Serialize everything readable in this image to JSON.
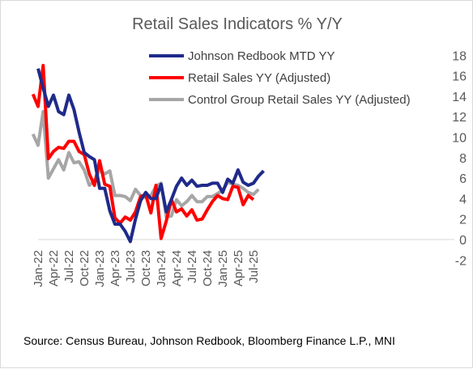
{
  "chart_data": {
    "type": "line",
    "title": "Retail Sales Indicators % Y/Y",
    "source": "Source: Census Bureau, Johnson Redbook, Bloomberg Finance L.P., MNI",
    "x_start": "2022-01",
    "x_tick_labels": [
      "Jan-22",
      "Apr-22",
      "Jul-22",
      "Oct-22",
      "Jan-23",
      "Apr-23",
      "Jul-23",
      "Oct-23",
      "Jan-24",
      "Apr-24",
      "Jul-24",
      "Oct-24",
      "Jan-25",
      "Apr-25",
      "Jul-25"
    ],
    "y_ticks": [
      "18",
      "16",
      "14",
      "12",
      "10",
      "8",
      "6",
      "4",
      "2",
      "0",
      "-2"
    ],
    "ylim": [
      -2,
      18
    ],
    "y_axis_position": "right",
    "grid": false,
    "legend_position": "top-right",
    "series": [
      {
        "name": "Johnson Redbook MTD YY",
        "color": "#1f2a8a",
        "points": [
          [
            "2022-01",
            16.7
          ],
          [
            "2022-02",
            14.8
          ],
          [
            "2022-03",
            13.0
          ],
          [
            "2022-04",
            14.1
          ],
          [
            "2022-05",
            12.5
          ],
          [
            "2022-06",
            12.2
          ],
          [
            "2022-07",
            14.1
          ],
          [
            "2022-08",
            12.7
          ],
          [
            "2022-09",
            10.5
          ],
          [
            "2022-10",
            8.5
          ],
          [
            "2022-11",
            8.1
          ],
          [
            "2022-12",
            7.8
          ],
          [
            "2023-01",
            5.0
          ],
          [
            "2023-02",
            5.0
          ],
          [
            "2023-03",
            2.8
          ],
          [
            "2023-04",
            1.5
          ],
          [
            "2023-05",
            1.5
          ],
          [
            "2023-06",
            0.8
          ],
          [
            "2023-07",
            -0.2
          ],
          [
            "2023-08",
            2.0
          ],
          [
            "2023-09",
            3.8
          ],
          [
            "2023-10",
            4.6
          ],
          [
            "2023-11",
            4.0
          ],
          [
            "2023-12",
            4.0
          ],
          [
            "2024-01",
            5.4
          ],
          [
            "2024-02",
            2.7
          ],
          [
            "2024-03",
            3.9
          ],
          [
            "2024-04",
            5.2
          ],
          [
            "2024-05",
            6.0
          ],
          [
            "2024-06",
            5.3
          ],
          [
            "2024-07",
            5.8
          ],
          [
            "2024-08",
            5.2
          ],
          [
            "2024-09",
            5.3
          ],
          [
            "2024-10",
            5.3
          ],
          [
            "2024-11",
            5.5
          ],
          [
            "2024-12",
            5.5
          ],
          [
            "2025-01",
            4.6
          ],
          [
            "2025-02",
            5.9
          ],
          [
            "2025-03",
            5.5
          ],
          [
            "2025-04",
            6.8
          ],
          [
            "2025-05",
            5.6
          ],
          [
            "2025-06",
            5.3
          ],
          [
            "2025-07",
            5.5
          ],
          [
            "2025-08",
            6.2
          ],
          [
            "2025-09",
            6.7
          ]
        ]
      },
      {
        "name": "Retail Sales YY (Adjusted)",
        "color": "#ff0000",
        "points": [
          [
            "2021-12",
            14.2
          ],
          [
            "2022-01",
            13.0
          ],
          [
            "2022-02",
            17.0
          ],
          [
            "2022-03",
            7.9
          ],
          [
            "2022-04",
            8.6
          ],
          [
            "2022-05",
            9.0
          ],
          [
            "2022-06",
            8.9
          ],
          [
            "2022-07",
            9.6
          ],
          [
            "2022-08",
            9.6
          ],
          [
            "2022-09",
            8.6
          ],
          [
            "2022-10",
            8.3
          ],
          [
            "2022-11",
            6.4
          ],
          [
            "2022-12",
            5.3
          ],
          [
            "2023-01",
            7.7
          ],
          [
            "2023-02",
            5.4
          ],
          [
            "2023-03",
            5.2
          ],
          [
            "2023-04",
            2.1
          ],
          [
            "2023-05",
            1.6
          ],
          [
            "2023-06",
            2.2
          ],
          [
            "2023-07",
            1.9
          ],
          [
            "2023-08",
            2.7
          ],
          [
            "2023-09",
            4.2
          ],
          [
            "2023-10",
            4.4
          ],
          [
            "2023-11",
            2.6
          ],
          [
            "2023-12",
            5.3
          ],
          [
            "2024-01",
            0.1
          ],
          [
            "2024-02",
            1.8
          ],
          [
            "2024-03",
            3.9
          ],
          [
            "2024-04",
            2.7
          ],
          [
            "2024-05",
            3.0
          ],
          [
            "2024-06",
            2.3
          ],
          [
            "2024-07",
            2.9
          ],
          [
            "2024-08",
            1.9
          ],
          [
            "2024-09",
            2.0
          ],
          [
            "2024-10",
            2.9
          ],
          [
            "2024-11",
            3.7
          ],
          [
            "2024-12",
            4.3
          ],
          [
            "2025-01",
            4.0
          ],
          [
            "2025-02",
            3.9
          ],
          [
            "2025-03",
            5.2
          ],
          [
            "2025-04",
            5.1
          ],
          [
            "2025-05",
            3.4
          ],
          [
            "2025-06",
            4.3
          ],
          [
            "2025-07",
            3.9
          ]
        ]
      },
      {
        "name": "Control Group Retail Sales YY (Adjusted)",
        "color": "#a6a6a6",
        "points": [
          [
            "2021-12",
            10.3
          ],
          [
            "2022-01",
            9.2
          ],
          [
            "2022-02",
            12.5
          ],
          [
            "2022-03",
            6.0
          ],
          [
            "2022-04",
            6.9
          ],
          [
            "2022-05",
            7.8
          ],
          [
            "2022-06",
            6.8
          ],
          [
            "2022-07",
            8.5
          ],
          [
            "2022-08",
            7.5
          ],
          [
            "2022-09",
            7.6
          ],
          [
            "2022-10",
            6.8
          ],
          [
            "2022-11",
            5.3
          ],
          [
            "2022-12",
            5.7
          ],
          [
            "2023-01",
            6.8
          ],
          [
            "2023-02",
            6.4
          ],
          [
            "2023-03",
            6.7
          ],
          [
            "2023-04",
            4.3
          ],
          [
            "2023-05",
            4.3
          ],
          [
            "2023-06",
            4.2
          ],
          [
            "2023-07",
            3.8
          ],
          [
            "2023-08",
            4.9
          ],
          [
            "2023-09",
            4.3
          ],
          [
            "2023-10",
            4.1
          ],
          [
            "2023-11",
            4.3
          ],
          [
            "2023-12",
            5.2
          ],
          [
            "2024-01",
            5.5
          ],
          [
            "2024-02",
            2.2
          ],
          [
            "2024-03",
            2.3
          ],
          [
            "2024-04",
            3.9
          ],
          [
            "2024-05",
            3.3
          ],
          [
            "2024-06",
            3.7
          ],
          [
            "2024-07",
            4.3
          ],
          [
            "2024-08",
            3.7
          ],
          [
            "2024-09",
            3.7
          ],
          [
            "2024-10",
            4.2
          ],
          [
            "2024-11",
            4.2
          ],
          [
            "2024-12",
            4.5
          ],
          [
            "2025-01",
            4.8
          ],
          [
            "2025-02",
            5.6
          ],
          [
            "2025-03",
            5.4
          ],
          [
            "2025-04",
            5.3
          ],
          [
            "2025-05",
            5.0
          ],
          [
            "2025-06",
            4.6
          ],
          [
            "2025-07",
            4.4
          ],
          [
            "2025-08",
            4.9
          ]
        ]
      }
    ]
  }
}
